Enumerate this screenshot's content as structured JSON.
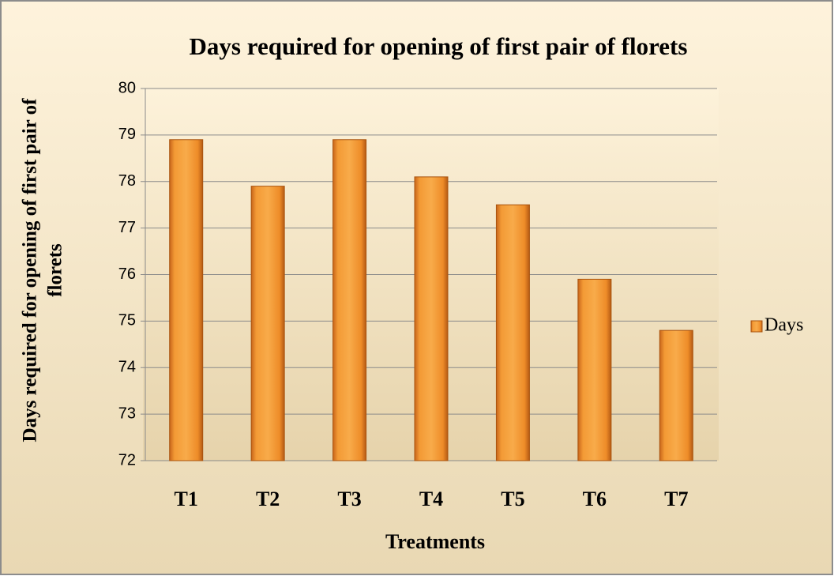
{
  "chart_data": {
    "type": "bar",
    "title": "Days required for opening of first pair of florets",
    "ylabel": [
      "Days required for opening of first pair of",
      "florets"
    ],
    "xlabel": "Treatments",
    "categories": [
      "T1",
      "T2",
      "T3",
      "T4",
      "T5",
      "T6",
      "T7"
    ],
    "series": [
      {
        "name": "Days",
        "color": "#f0922a",
        "values": [
          78.9,
          77.9,
          78.9,
          78.1,
          77.5,
          75.9,
          74.8
        ]
      }
    ],
    "ylim": [
      72,
      80
    ],
    "yticks": [
      72,
      73,
      74,
      75,
      76,
      77,
      78,
      79,
      80
    ],
    "grid": true,
    "legend": "right"
  }
}
